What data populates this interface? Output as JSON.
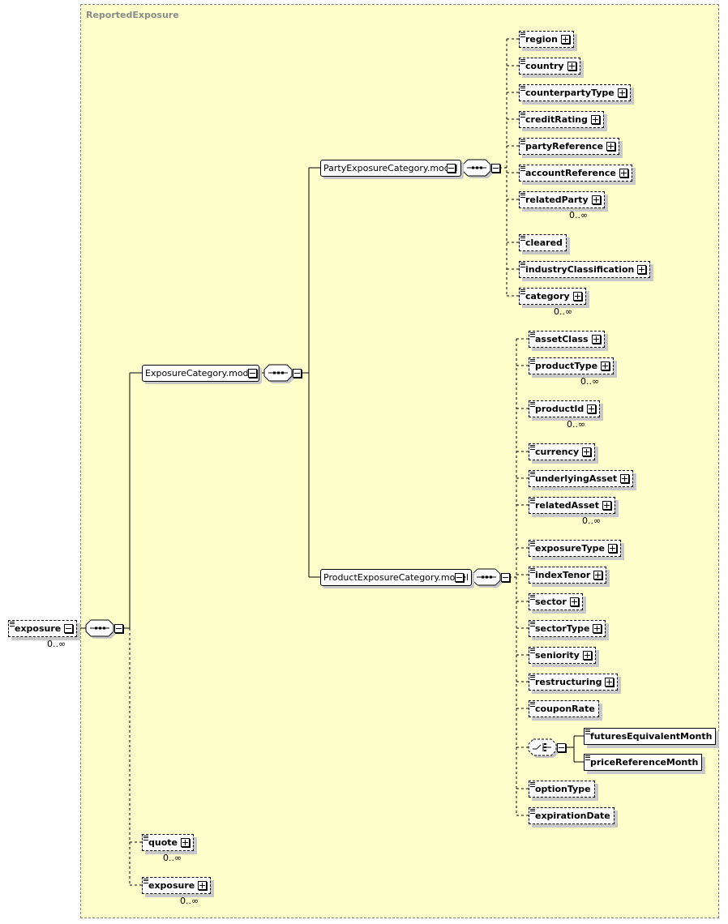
{
  "group_title": "ReportedExposure",
  "root": {
    "label": "exposure",
    "cardinality": "0..∞"
  },
  "models": {
    "exposure_category": "ExposureCategory.model",
    "party_exposure_category": "PartyExposureCategory.model",
    "product_exposure_category": "ProductExposureCategory.model"
  },
  "party_elements": [
    {
      "label": "region",
      "expandable": true
    },
    {
      "label": "country",
      "expandable": true
    },
    {
      "label": "counterpartyType",
      "expandable": true
    },
    {
      "label": "creditRating",
      "expandable": true
    },
    {
      "label": "partyReference",
      "expandable": true
    },
    {
      "label": "accountReference",
      "expandable": true
    },
    {
      "label": "relatedParty",
      "expandable": true,
      "cardinality": "0..∞"
    },
    {
      "label": "cleared",
      "expandable": false
    },
    {
      "label": "industryClassification",
      "expandable": true
    },
    {
      "label": "category",
      "expandable": true,
      "cardinality": "0..∞"
    }
  ],
  "product_elements": [
    {
      "label": "assetClass",
      "expandable": true
    },
    {
      "label": "productType",
      "expandable": true,
      "cardinality": "0..∞"
    },
    {
      "label": "productId",
      "expandable": true,
      "cardinality": "0..∞"
    },
    {
      "label": "currency",
      "expandable": true
    },
    {
      "label": "underlyingAsset",
      "expandable": true
    },
    {
      "label": "relatedAsset",
      "expandable": true,
      "cardinality": "0..∞"
    },
    {
      "label": "exposureType",
      "expandable": true
    },
    {
      "label": "indexTenor",
      "expandable": true
    },
    {
      "label": "sector",
      "expandable": true
    },
    {
      "label": "sectorType",
      "expandable": true
    },
    {
      "label": "seniority",
      "expandable": true
    },
    {
      "label": "restructuring",
      "expandable": true
    },
    {
      "label": "couponRate",
      "expandable": false
    },
    {
      "label": "optionType",
      "expandable": false
    },
    {
      "label": "expirationDate",
      "expandable": false
    }
  ],
  "choice_elements": [
    {
      "label": "futuresEquivalentMonth"
    },
    {
      "label": "priceReferenceMonth"
    }
  ],
  "bottom_elements": [
    {
      "label": "quote",
      "expandable": true,
      "cardinality": "0..∞"
    },
    {
      "label": "exposure",
      "expandable": true,
      "cardinality": "0..∞"
    }
  ]
}
